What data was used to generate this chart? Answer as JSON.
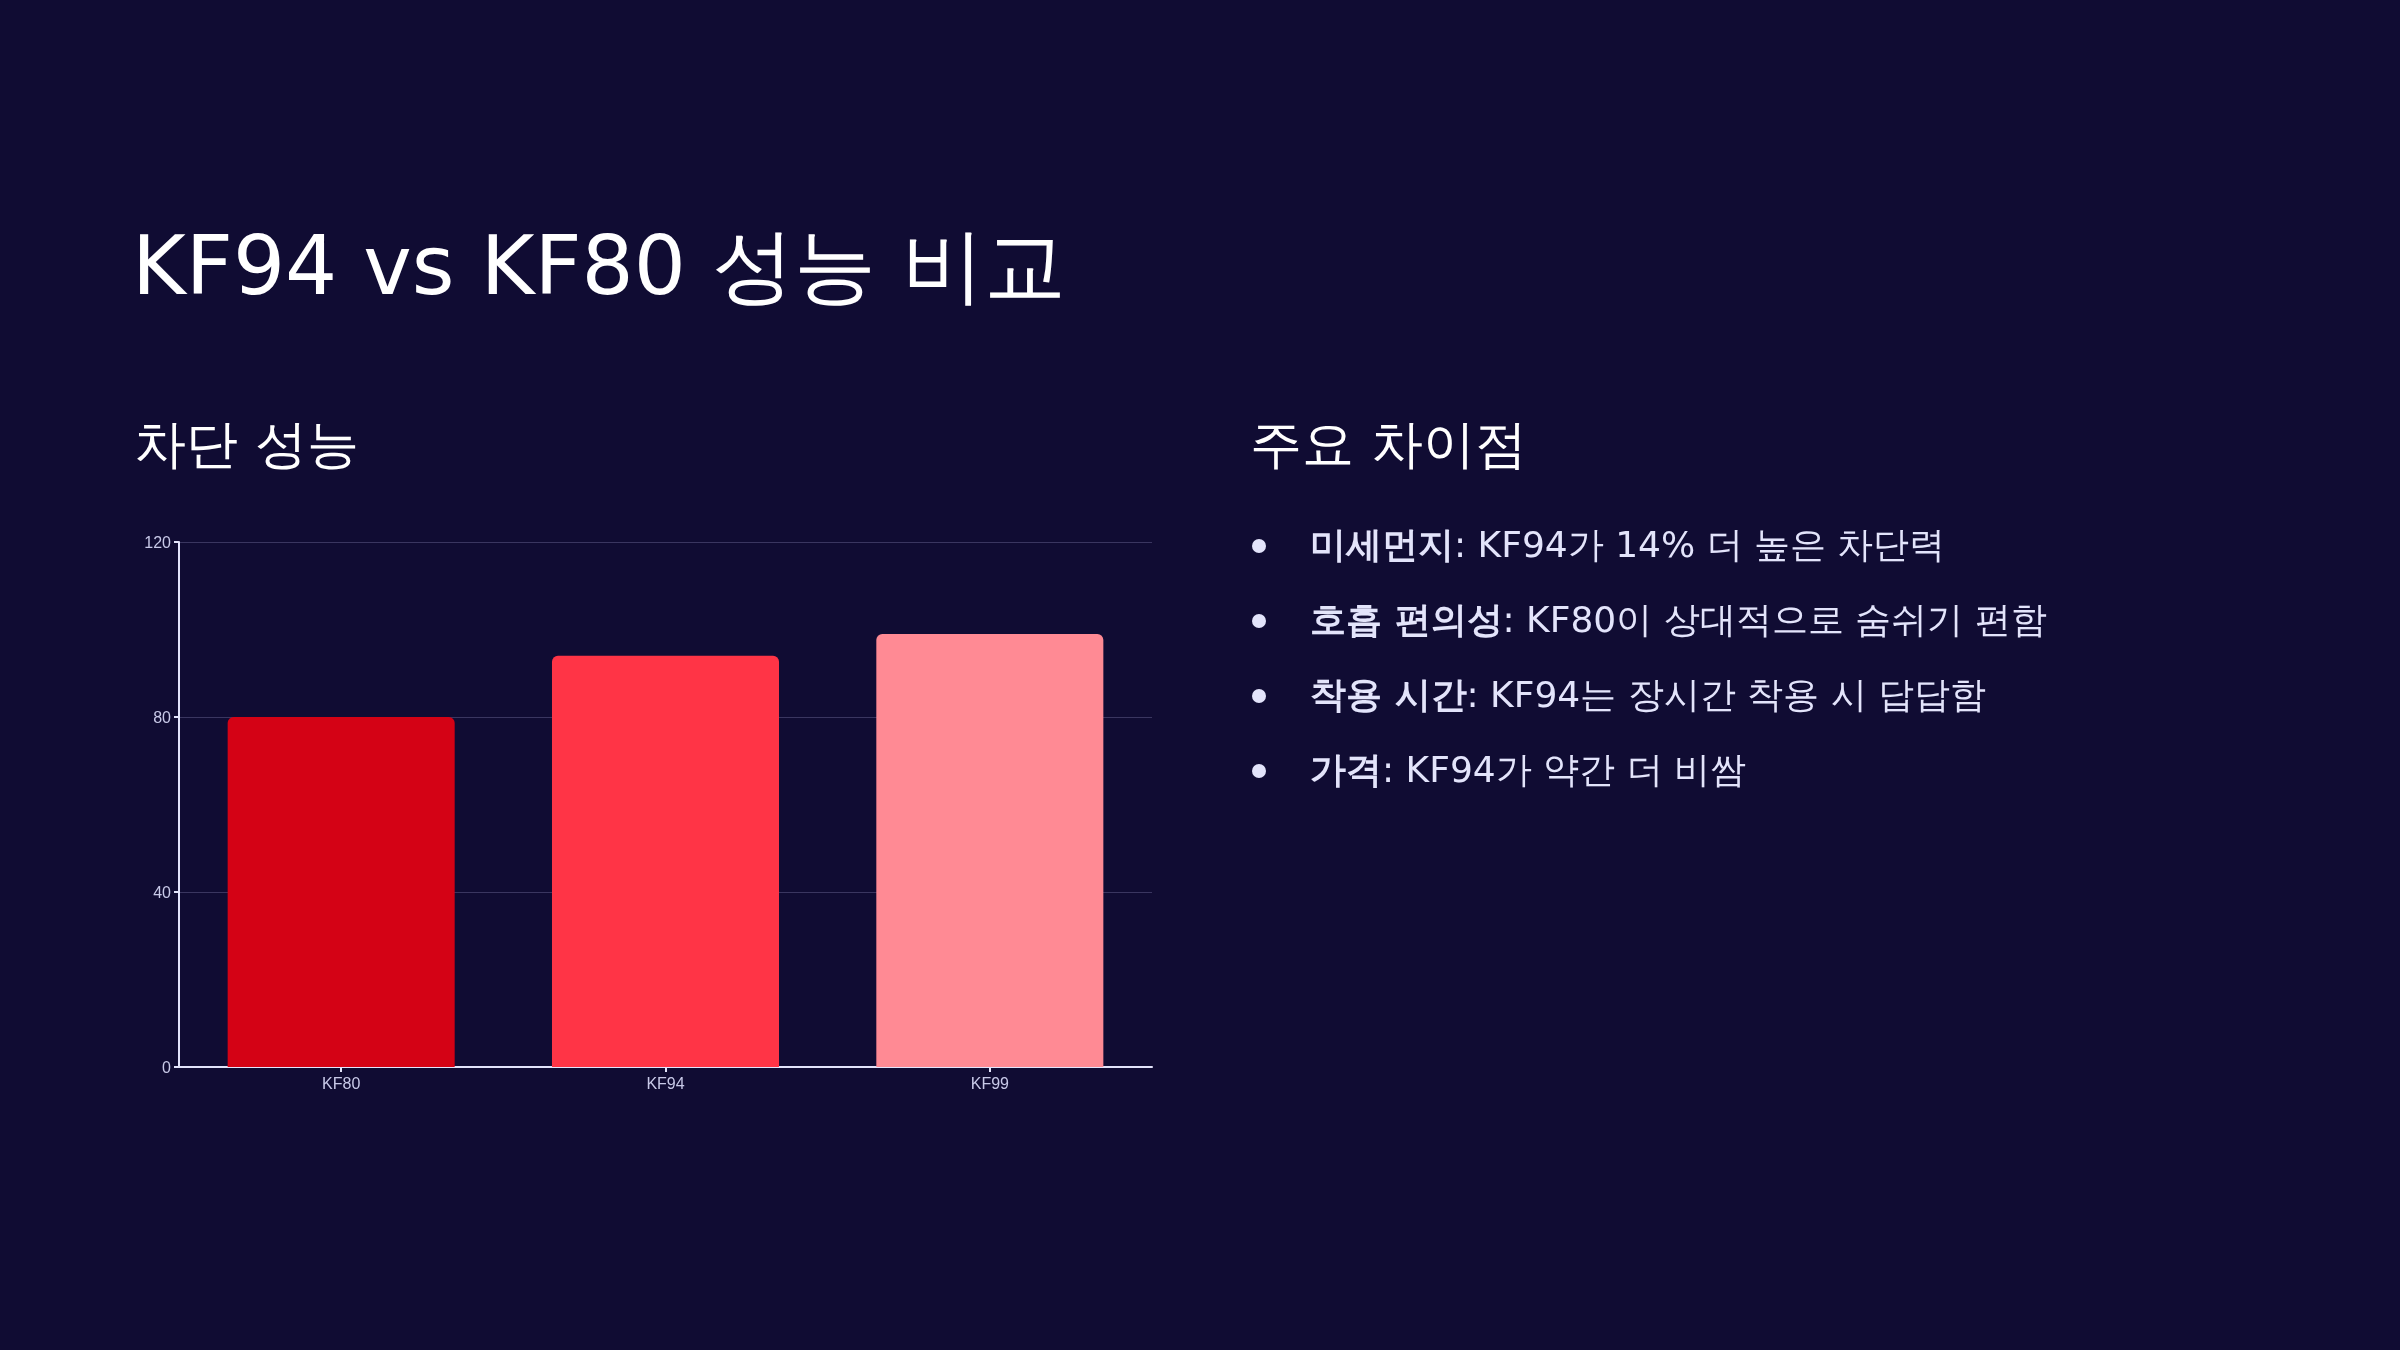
{
  "chart_data": [
    {
      "type": "bar",
      "title": "KF94 vs KF80 성능 비교",
      "subtitle": "차단 성능",
      "categories": [
        "KF80",
        "KF94",
        "KF99"
      ],
      "values": [
        80,
        94,
        99
      ],
      "colors": [
        "#d40215",
        "#ff3446",
        "#ff8a94"
      ],
      "ylim": [
        0,
        120
      ],
      "yticks": [
        0,
        40,
        80,
        120
      ],
      "grid": "y"
    },
    {
      "type": "other",
      "title": "주요 차이점",
      "annotations": [
        "미세먼지: KF94가 14% 더 높은 차단력",
        "호흡 편의성: KF80이 상대적으로 숨쉬기 편함",
        "착용 시간: KF94는 장시간 착용 시 답답함",
        "가격: KF94가 약간 더 비쌈"
      ]
    }
  ]
}
